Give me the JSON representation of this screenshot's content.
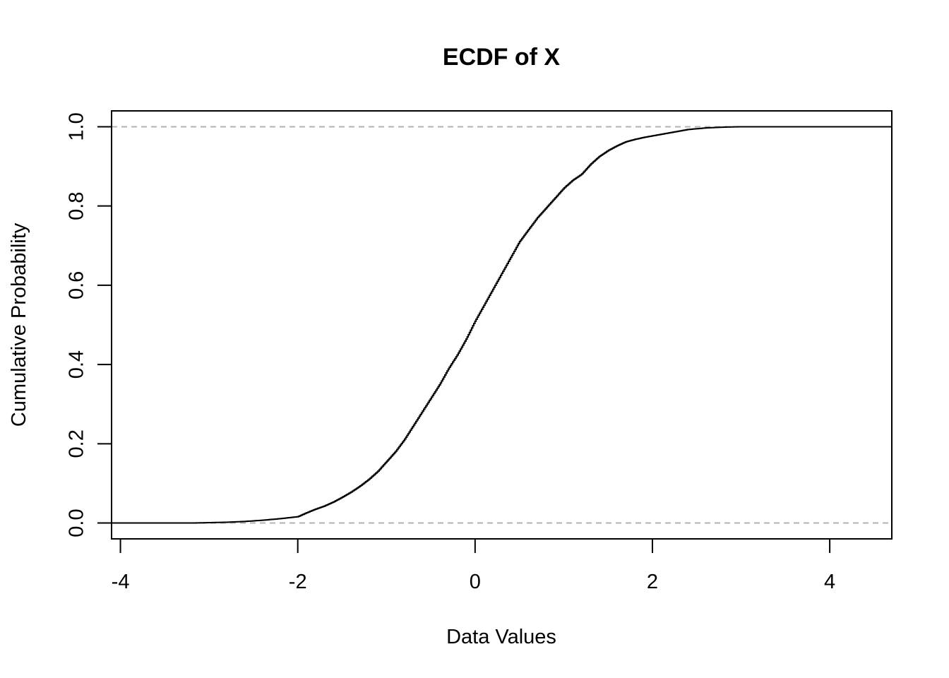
{
  "chart_data": {
    "type": "line",
    "subtype": "step",
    "title": "ECDF of X",
    "xlabel": "Data Values",
    "ylabel": "Cumulative Probability",
    "xlim": [
      -4.1,
      4.7
    ],
    "ylim": [
      -0.04,
      1.04
    ],
    "x_ticks": [
      -4,
      -2,
      0,
      2,
      4
    ],
    "x_tick_labels": [
      "-4",
      "-2",
      "0",
      "2",
      "4"
    ],
    "y_ticks": [
      0.0,
      0.2,
      0.4,
      0.6,
      0.8,
      1.0
    ],
    "y_tick_labels": [
      "0.0",
      "0.2",
      "0.4",
      "0.6",
      "0.8",
      "1.0"
    ],
    "reference_lines": [
      0.0,
      1.0
    ],
    "grid": false,
    "legend": "none",
    "colors": {
      "line": "#000000",
      "reference": "#b3b3b3"
    },
    "series": [
      {
        "x": [
          -4.1,
          -3.2,
          -3.0,
          -2.8,
          -2.6,
          -2.4,
          -2.2,
          -2.0,
          -1.9,
          -1.8,
          -1.7,
          -1.6,
          -1.5,
          -1.4,
          -1.3,
          -1.2,
          -1.1,
          -1.0,
          -0.9,
          -0.8,
          -0.7,
          -0.6,
          -0.5,
          -0.4,
          -0.3,
          -0.2,
          -0.1,
          0.0,
          0.1,
          0.2,
          0.3,
          0.4,
          0.5,
          0.6,
          0.7,
          0.8,
          0.9,
          1.0,
          1.1,
          1.2,
          1.3,
          1.4,
          1.5,
          1.6,
          1.7,
          1.8,
          1.9,
          2.0,
          2.2,
          2.4,
          2.6,
          2.8,
          3.0,
          3.5,
          4.0,
          4.7
        ],
        "y": [
          0.0,
          0.0,
          0.001,
          0.002,
          0.004,
          0.007,
          0.011,
          0.016,
          0.026,
          0.035,
          0.043,
          0.053,
          0.065,
          0.078,
          0.093,
          0.11,
          0.13,
          0.155,
          0.18,
          0.21,
          0.245,
          0.28,
          0.315,
          0.35,
          0.39,
          0.425,
          0.465,
          0.51,
          0.55,
          0.59,
          0.63,
          0.67,
          0.71,
          0.74,
          0.77,
          0.795,
          0.82,
          0.845,
          0.865,
          0.88,
          0.905,
          0.925,
          0.94,
          0.952,
          0.962,
          0.968,
          0.973,
          0.977,
          0.985,
          0.993,
          0.997,
          0.999,
          1.0,
          1.0,
          1.0,
          1.0
        ]
      }
    ]
  }
}
